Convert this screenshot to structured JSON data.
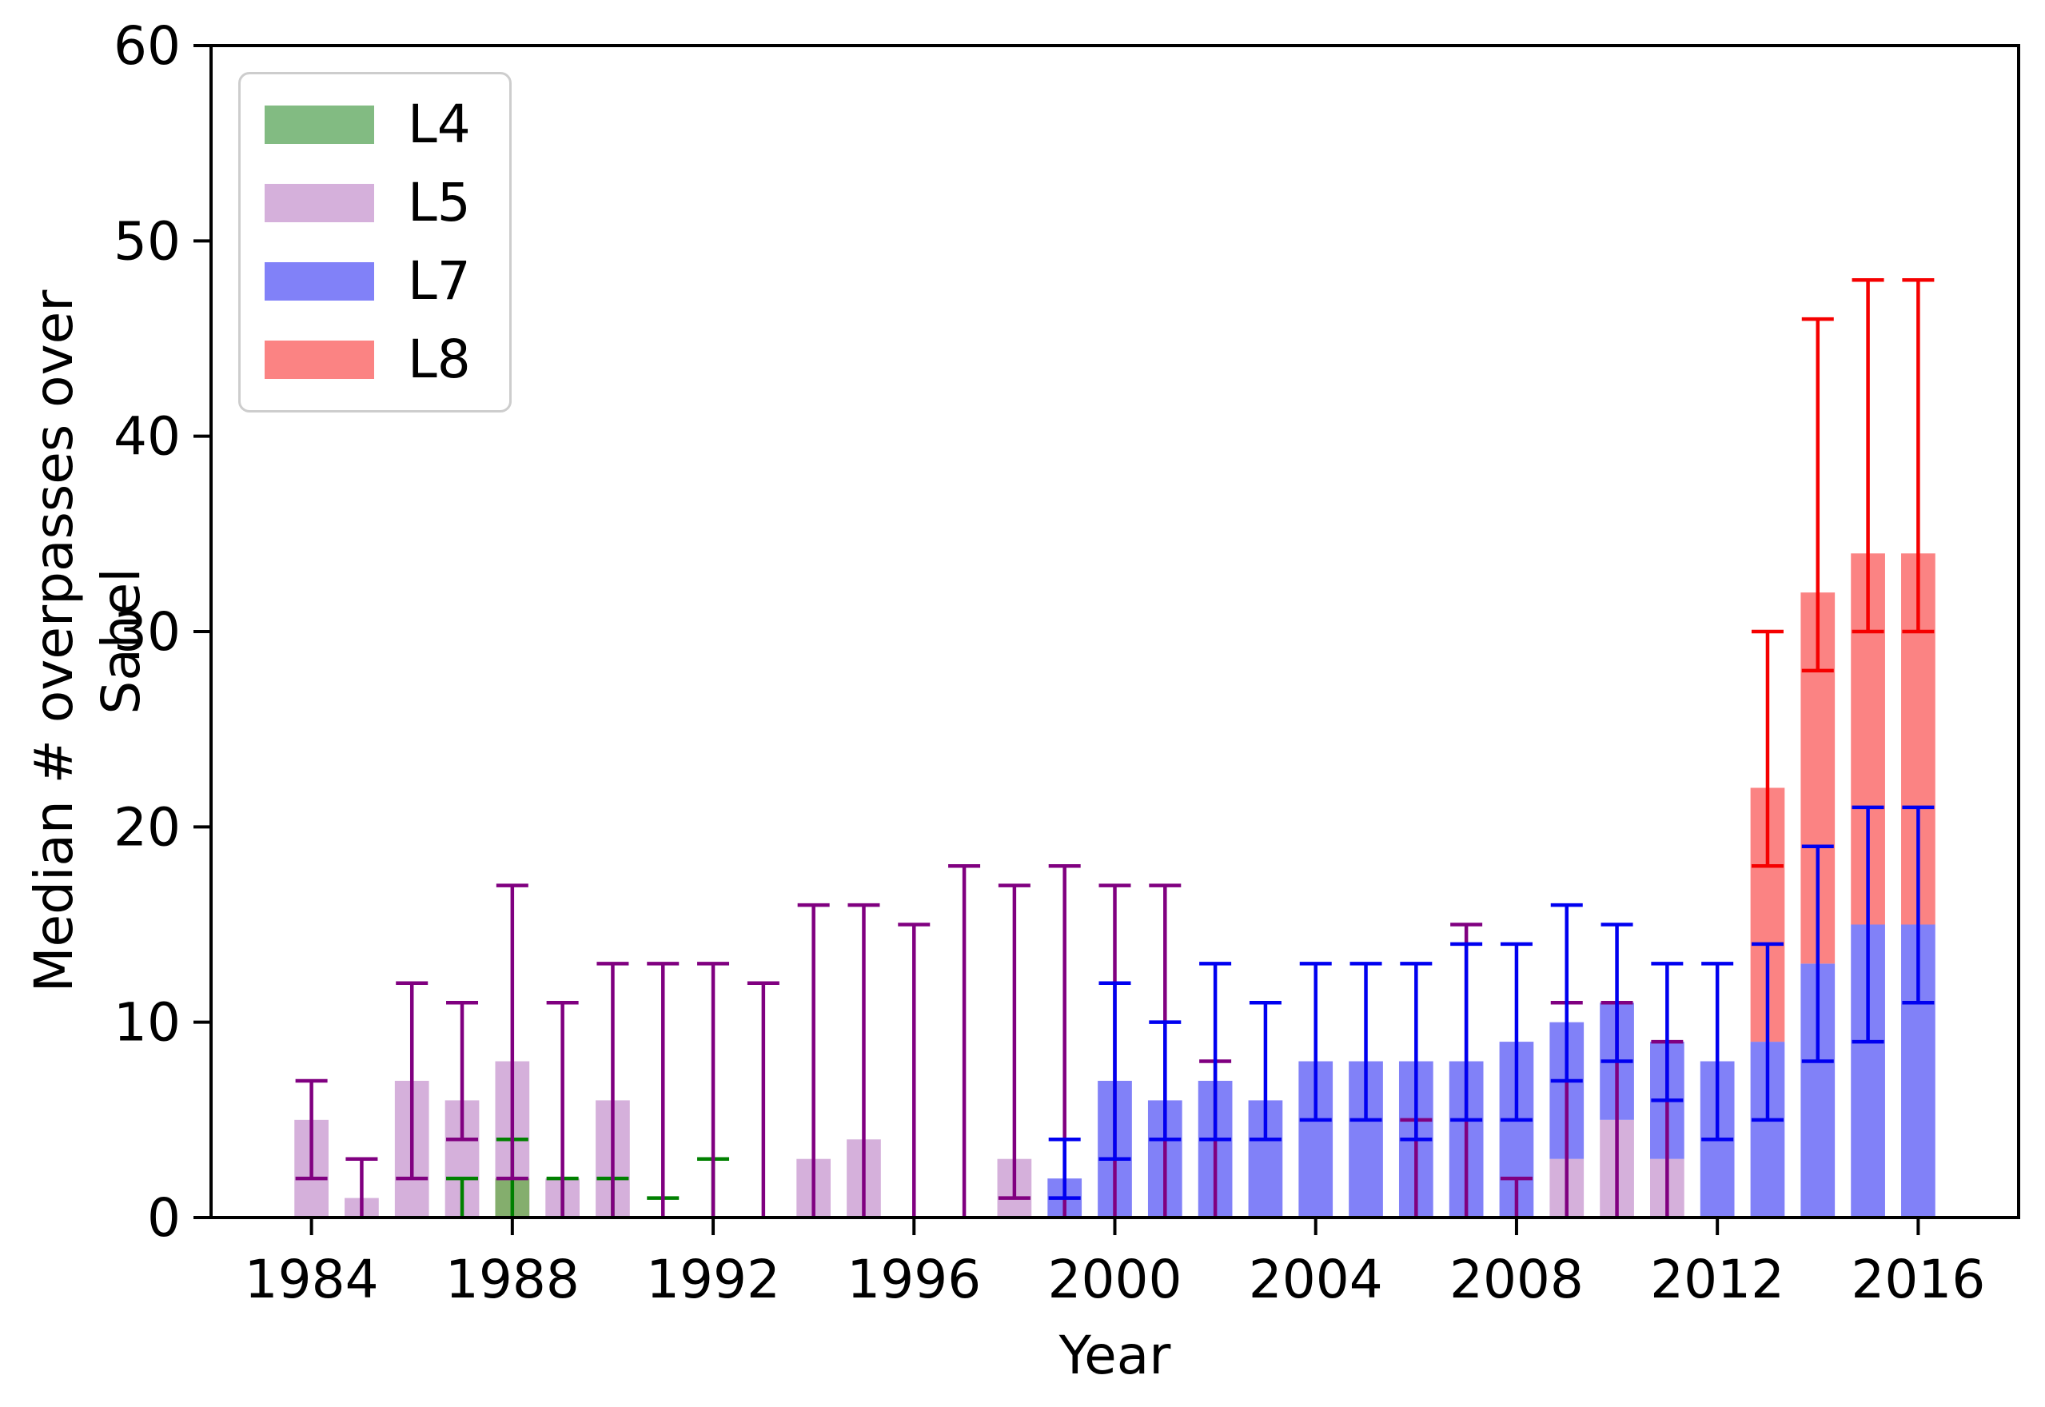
{
  "chart_data": {
    "type": "bar",
    "title": "",
    "xlabel": "Year",
    "ylabel": "Median # overpasses over Sahel",
    "xlim": [
      1982,
      2018
    ],
    "ylim": [
      0,
      60
    ],
    "xticks": [
      1984,
      1988,
      1992,
      1996,
      2000,
      2004,
      2008,
      2012,
      2016
    ],
    "yticks": [
      0,
      10,
      20,
      30,
      40,
      50,
      60
    ],
    "grid": false,
    "legend_position": "upper left",
    "bar_width_years": 0.68,
    "axis_color": "#000000",
    "legend_border_color": "#cdcdcd",
    "legend": [
      {
        "label": "L4",
        "color": "#82bb82"
      },
      {
        "label": "L5",
        "color": "#d5b0db"
      },
      {
        "label": "L7",
        "color": "#8181f8"
      },
      {
        "label": "L8",
        "color": "#fb8383"
      }
    ],
    "series": [
      {
        "name": "L5",
        "fill": "#d5b0db",
        "err_color": "#800080",
        "bars": [
          {
            "year": 1984,
            "from": 0,
            "to": 5,
            "err": [
              2,
              7
            ]
          },
          {
            "year": 1985,
            "from": 0,
            "to": 1,
            "err": [
              0,
              3
            ]
          },
          {
            "year": 1986,
            "from": 0,
            "to": 7,
            "err": [
              2,
              12
            ]
          },
          {
            "year": 1987,
            "from": 0,
            "to": 6,
            "err": [
              4,
              11
            ]
          },
          {
            "year": 1988,
            "from": 0,
            "to": 8,
            "err": [
              2,
              17
            ]
          },
          {
            "year": 1989,
            "from": 0,
            "to": 2,
            "err": [
              0,
              11
            ]
          },
          {
            "year": 1990,
            "from": 0,
            "to": 6,
            "err": [
              0,
              13
            ]
          },
          {
            "year": 1991,
            "from": 0,
            "to": 0,
            "err": [
              0,
              13
            ]
          },
          {
            "year": 1992,
            "from": 0,
            "to": 0,
            "err": [
              0,
              13
            ]
          },
          {
            "year": 1993,
            "from": 0,
            "to": 0,
            "err": [
              0,
              12
            ]
          },
          {
            "year": 1994,
            "from": 0,
            "to": 3,
            "err": [
              0,
              16
            ]
          },
          {
            "year": 1995,
            "from": 0,
            "to": 4,
            "err": [
              0,
              16
            ]
          },
          {
            "year": 1996,
            "from": 0,
            "to": 0,
            "err": [
              0,
              15
            ]
          },
          {
            "year": 1997,
            "from": 0,
            "to": 0,
            "err": [
              0,
              18
            ]
          },
          {
            "year": 1998,
            "from": 0,
            "to": 3,
            "err": [
              1,
              17
            ]
          },
          {
            "year": 1999,
            "from": 0,
            "to": 0,
            "err": [
              0,
              18
            ]
          },
          {
            "year": 2000,
            "from": 0,
            "to": 0,
            "err": [
              0,
              17
            ]
          },
          {
            "year": 2001,
            "from": 0,
            "to": 0,
            "err": [
              0,
              17
            ]
          },
          {
            "year": 2002,
            "from": 0,
            "to": 0,
            "err": [
              0,
              8
            ]
          },
          {
            "year": 2006,
            "from": 0,
            "to": 0,
            "err": [
              0,
              5
            ]
          },
          {
            "year": 2007,
            "from": 0,
            "to": 0,
            "err": [
              0,
              15
            ]
          },
          {
            "year": 2008,
            "from": 0,
            "to": 0,
            "err": [
              0,
              2
            ]
          },
          {
            "year": 2009,
            "from": 0,
            "to": 3,
            "err": [
              0,
              11
            ]
          },
          {
            "year": 2010,
            "from": 0,
            "to": 5,
            "err": [
              0,
              11
            ]
          },
          {
            "year": 2011,
            "from": 0,
            "to": 3,
            "err": [
              0,
              9
            ]
          }
        ]
      },
      {
        "name": "L4",
        "fill": "#84ae6d",
        "err_color": "#008000",
        "bars": [
          {
            "year": 1987,
            "from": 0,
            "to": 0,
            "err": [
              0,
              2
            ]
          },
          {
            "year": 1988,
            "from": 0,
            "to": 2,
            "err": [
              0,
              4
            ]
          },
          {
            "year": 1989,
            "from": 0,
            "to": 0,
            "err": [
              0,
              2
            ]
          },
          {
            "year": 1990,
            "from": 0,
            "to": 0,
            "err": [
              0,
              2
            ]
          },
          {
            "year": 1991,
            "from": 0,
            "to": 0,
            "err": [
              0,
              1
            ]
          },
          {
            "year": 1992,
            "from": 0,
            "to": 0,
            "err": [
              0,
              3
            ]
          }
        ]
      },
      {
        "name": "L7",
        "fill": "#8181f8",
        "err_color": "#0000f0",
        "bars": [
          {
            "year": 1999,
            "from": 0,
            "to": 2,
            "err": [
              1,
              4
            ]
          },
          {
            "year": 2000,
            "from": 0,
            "to": 7,
            "err": [
              3,
              12
            ]
          },
          {
            "year": 2001,
            "from": 0,
            "to": 6,
            "err": [
              4,
              10
            ]
          },
          {
            "year": 2002,
            "from": 0,
            "to": 7,
            "err": [
              4,
              13
            ]
          },
          {
            "year": 2003,
            "from": 0,
            "to": 6,
            "err": [
              4,
              11
            ]
          },
          {
            "year": 2004,
            "from": 0,
            "to": 8,
            "err": [
              5,
              13
            ]
          },
          {
            "year": 2005,
            "from": 0,
            "to": 8,
            "err": [
              5,
              13
            ]
          },
          {
            "year": 2006,
            "from": 0,
            "to": 8,
            "err": [
              4,
              13
            ]
          },
          {
            "year": 2007,
            "from": 0,
            "to": 8,
            "err": [
              5,
              14
            ]
          },
          {
            "year": 2008,
            "from": 0,
            "to": 9,
            "err": [
              5,
              14
            ]
          },
          {
            "year": 2009,
            "from": 3,
            "to": 10,
            "err": [
              7,
              16
            ]
          },
          {
            "year": 2010,
            "from": 5,
            "to": 11,
            "err": [
              8,
              15
            ]
          },
          {
            "year": 2011,
            "from": 3,
            "to": 9,
            "err": [
              6,
              13
            ]
          },
          {
            "year": 2012,
            "from": 0,
            "to": 8,
            "err": [
              4,
              13
            ]
          },
          {
            "year": 2013,
            "from": 0,
            "to": 9,
            "err": [
              5,
              14
            ]
          },
          {
            "year": 2014,
            "from": 0,
            "to": 13,
            "err": [
              8,
              19
            ]
          },
          {
            "year": 2015,
            "from": 0,
            "to": 15,
            "err": [
              9,
              21
            ]
          },
          {
            "year": 2016,
            "from": 0,
            "to": 15,
            "err": [
              11,
              21
            ]
          }
        ]
      },
      {
        "name": "L8",
        "fill": "#fb8383",
        "err_color": "#f50000",
        "bars": [
          {
            "year": 2013,
            "from": 9,
            "to": 22,
            "err": [
              18,
              30
            ]
          },
          {
            "year": 2014,
            "from": 13,
            "to": 32,
            "err": [
              28,
              46
            ]
          },
          {
            "year": 2015,
            "from": 15,
            "to": 34,
            "err": [
              30,
              48
            ]
          },
          {
            "year": 2016,
            "from": 15,
            "to": 34,
            "err": [
              30,
              48
            ]
          }
        ]
      }
    ]
  }
}
